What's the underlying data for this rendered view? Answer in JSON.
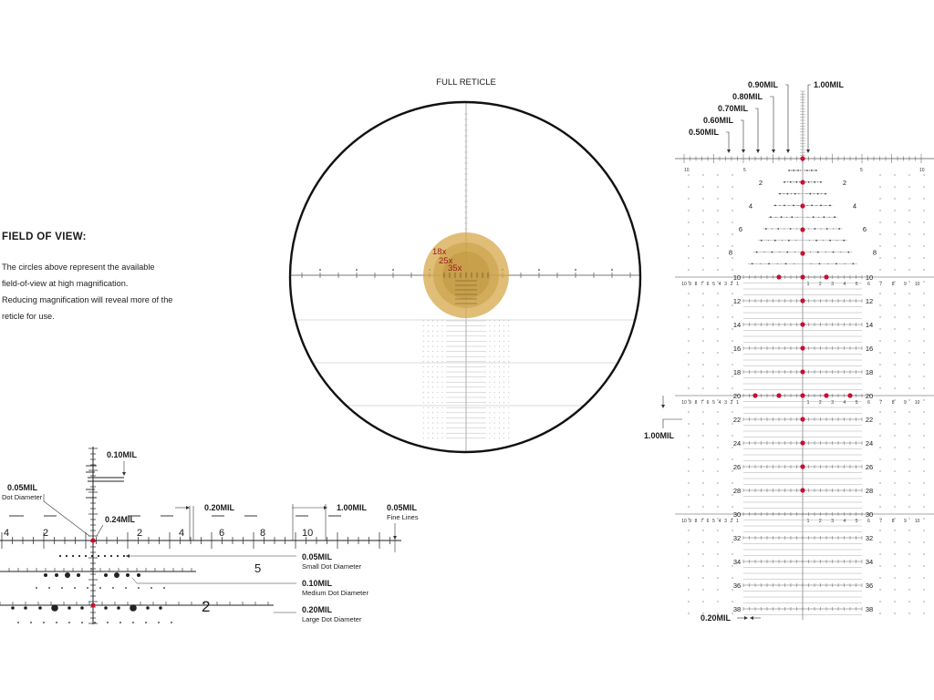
{
  "title": "FULL RETICLE",
  "field_of_view": {
    "heading": "FIELD OF VIEW:",
    "lines": [
      "The circles above represent the available",
      "field-of-view at high magnification.",
      "Reducing magnification will reveal more of the",
      "reticle for use."
    ]
  },
  "magnification_labels": [
    "18x",
    "25x",
    "35x"
  ],
  "colors": {
    "accent_red": "#c8102e",
    "fov_gold": "#d4a442",
    "ink": "#1a1a1a"
  },
  "right_detail": {
    "top_callouts": [
      "0.90MIL",
      "0.80MIL",
      "0.70MIL",
      "0.60MIL",
      "0.50MIL",
      "1.00MIL"
    ],
    "horizontal_ticks": [
      "10",
      "5",
      "5",
      "10"
    ],
    "upper_ladder_rows": [
      "2",
      "4",
      "6",
      "8"
    ],
    "ladder_rows": [
      "10",
      "12",
      "14",
      "16",
      "18",
      "20",
      "22",
      "24",
      "26",
      "28",
      "30",
      "32",
      "34",
      "36",
      "38"
    ],
    "side_numbers": [
      "10",
      "9",
      "8",
      "7",
      "6",
      "5",
      "4",
      "3",
      "2",
      "1",
      "1",
      "2",
      "3",
      "4",
      "5",
      "6",
      "7",
      "8",
      "9",
      "10"
    ],
    "left_callout": "1.00MIL",
    "bottom_callout": "0.20MIL"
  },
  "bottom_detail": {
    "callout_010": "0.10MIL",
    "dot_diameter_value": "0.05MIL",
    "dot_diameter_caption": "Dot Diameter",
    "callout_024": "0.24MIL",
    "callout_020": "0.20MIL",
    "callout_100": "1.00MIL",
    "fine_lines_value": "0.05MIL",
    "fine_lines_caption": "Fine Lines",
    "axis_labels": [
      "4",
      "2",
      "2",
      "4",
      "6",
      "8",
      "10"
    ],
    "row_markers": [
      "5",
      "2"
    ],
    "small_dot_value": "0.05MIL",
    "small_dot_caption": "Small Dot Diameter",
    "medium_dot_value": "0.10MIL",
    "medium_dot_caption": "Medium Dot Diameter",
    "large_dot_value": "0.20MIL",
    "large_dot_caption": "Large Dot Diameter"
  }
}
